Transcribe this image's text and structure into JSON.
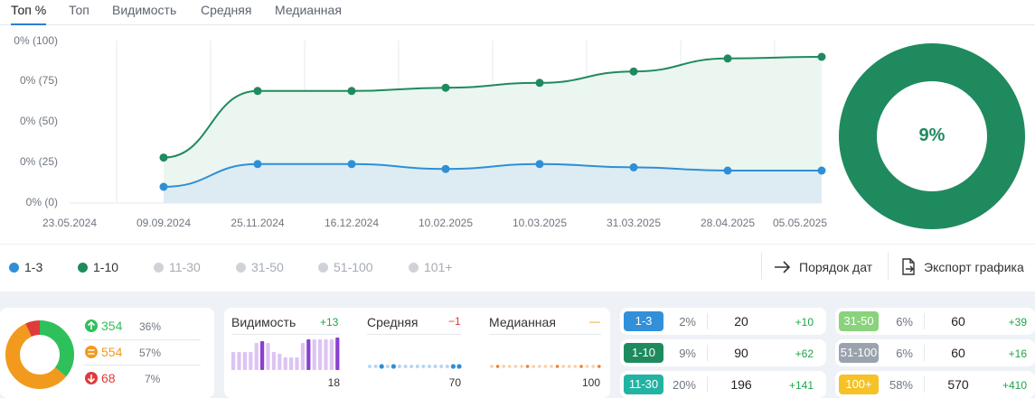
{
  "tabs": [
    "Топ %",
    "Топ",
    "Видимость",
    "Средняя",
    "Медианная"
  ],
  "chart_data": {
    "type": "line",
    "x": [
      "23.05.2024",
      "09.09.2024",
      "25.11.2024",
      "16.12.2024",
      "10.02.2025",
      "10.03.2025",
      "31.03.2025",
      "28.04.2025",
      "05.05.2025"
    ],
    "y_tick_labels": [
      "0% (100)",
      "0% (75)",
      "0% (50)",
      "0% (25)",
      "0% (0)"
    ],
    "ylim": [
      0,
      100
    ],
    "series": [
      {
        "name": "1-10",
        "color": "#1f8a5e",
        "values": [
          null,
          28,
          69,
          69,
          71,
          74,
          81,
          89,
          90
        ]
      },
      {
        "name": "1-3",
        "color": "#2f8fd6",
        "values": [
          null,
          10,
          24,
          24,
          21,
          24,
          22,
          20,
          20
        ]
      }
    ],
    "grid": "vertical",
    "legend": "bottom-left"
  },
  "donut": {
    "label": "9%",
    "value": 9,
    "color": "#1f8a5e"
  },
  "legend": [
    {
      "label": "1-3",
      "color": "#2f8fd6",
      "active": true
    },
    {
      "label": "1-10",
      "color": "#1f8a5e",
      "active": true
    },
    {
      "label": "11-30",
      "color": "#cfd3d8",
      "active": false
    },
    {
      "label": "31-50",
      "color": "#cfd3d8",
      "active": false
    },
    {
      "label": "51-100",
      "color": "#cfd3d8",
      "active": false
    },
    {
      "label": "101+",
      "color": "#cfd3d8",
      "active": false
    }
  ],
  "actions": {
    "date_order": "Порядок дат",
    "export": "Экспорт графика"
  },
  "summary": {
    "rows": [
      {
        "icon": "arrow-up-icon",
        "count": "354",
        "pct": "36%",
        "color": "#2ec05a"
      },
      {
        "icon": "equal-icon",
        "count": "554",
        "pct": "57%",
        "color": "#f29a1e"
      },
      {
        "icon": "arrow-down-icon",
        "count": "68",
        "pct": "7%",
        "color": "#e03b3b"
      }
    ]
  },
  "metrics": [
    {
      "title": "Видимость",
      "delta": "+13",
      "delta_color": "#1fa34a",
      "value": "18"
    },
    {
      "title": "Средняя",
      "delta": "−1",
      "delta_color": "#e03b3b",
      "value": "70"
    },
    {
      "title": "Медианная",
      "delta": "—",
      "delta_color": "#f29a1e",
      "value": "100"
    }
  ],
  "ranges": [
    {
      "label": "1-3",
      "pct": "2%",
      "count": "20",
      "delta": "+10",
      "color": "#3190d8"
    },
    {
      "label": "1-10",
      "pct": "9%",
      "count": "90",
      "delta": "+62",
      "color": "#1f8a5e"
    },
    {
      "label": "11-30",
      "pct": "20%",
      "count": "196",
      "delta": "+141",
      "color": "#23b3a3"
    },
    {
      "label": "31-50",
      "pct": "6%",
      "count": "60",
      "delta": "+39",
      "color": "#8ad27c"
    },
    {
      "label": "51-100",
      "pct": "6%",
      "count": "60",
      "delta": "+16",
      "color": "#9aa3ad"
    },
    {
      "label": "100+",
      "pct": "58%",
      "count": "570",
      "delta": "+410",
      "color": "#f5c227"
    }
  ]
}
